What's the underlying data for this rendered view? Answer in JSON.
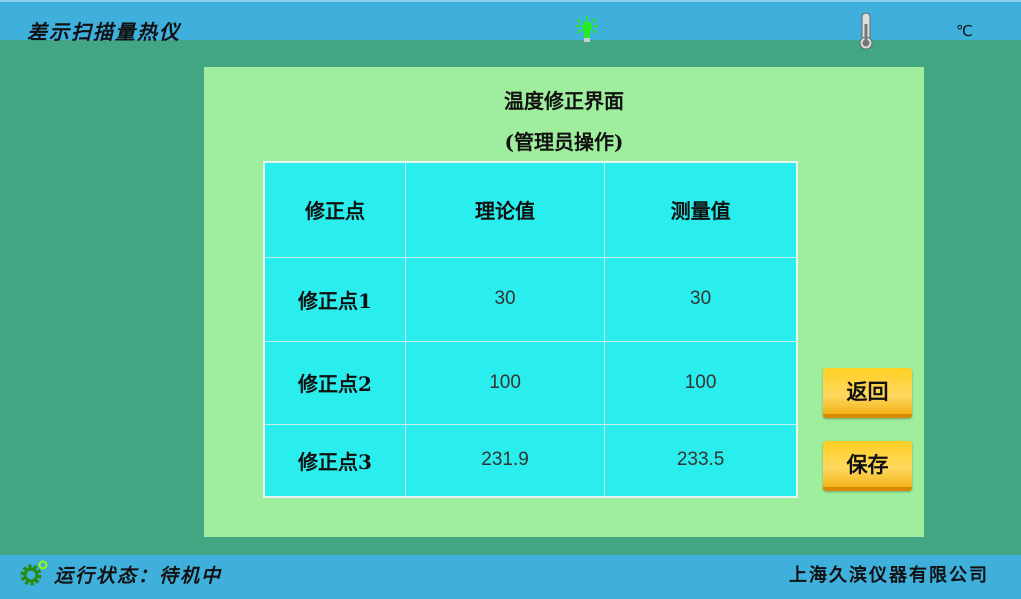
{
  "header": {
    "title": "差示扫描量热仪",
    "unit": "℃",
    "icons": [
      "lightbulb-icon",
      "thermometer-icon"
    ],
    "bulb_color": "#22ee22"
  },
  "panel": {
    "title": "温度修正界面",
    "subtitle": "(管理员操作)"
  },
  "table": {
    "headers": [
      "修正点",
      "理论值",
      "测量值"
    ],
    "rows": [
      {
        "label": "修正点1",
        "theory": "30",
        "measured": "30"
      },
      {
        "label": "修正点2",
        "theory": "100",
        "measured": "100"
      },
      {
        "label": "修正点3",
        "theory": "231.9",
        "measured": "233.5"
      }
    ]
  },
  "buttons": {
    "back": "返回",
    "save": "保存"
  },
  "footer": {
    "status": "运行状态：待机中",
    "company": "上海久滨仪器有限公司",
    "icon": "gear-icon"
  },
  "colors": {
    "header": "#3fb0dc",
    "background": "#42a682",
    "panel": "#9fee9e",
    "table": "#2aeeee",
    "button": "#ffcf22"
  }
}
